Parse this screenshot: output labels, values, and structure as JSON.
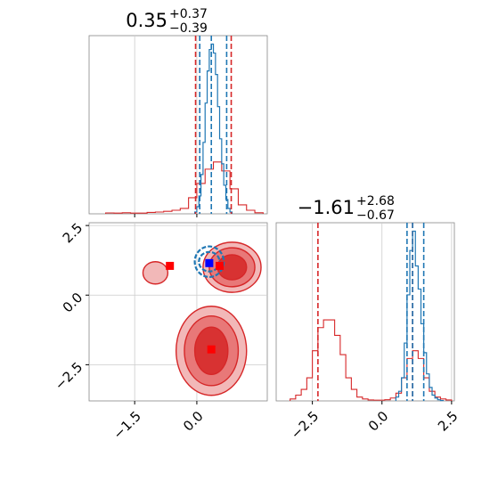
{
  "chart_data": {
    "type": "corner",
    "parameters": 2,
    "colors": {
      "reference": "#d62728",
      "posterior": "#1f77b4"
    },
    "grid": true,
    "panels": [
      {
        "kind": "histogram",
        "position": "top-left",
        "title": {
          "median": "0.35",
          "plus": "+0.37",
          "minus": "−0.39"
        },
        "xlim": [
          -2.6,
          1.7
        ],
        "x_ticks": [
          -1.5,
          0.0
        ],
        "reference_lines": [
          -0.03,
          0.83
        ],
        "posterior_lines": [
          0.07,
          0.35,
          0.72
        ],
        "reference_hist": {
          "bin_edges": [
            -2.2,
            -2.0,
            -1.8,
            -1.6,
            -1.4,
            -1.2,
            -1.0,
            -0.8,
            -0.6,
            -0.4,
            -0.2,
            0.0,
            0.2,
            0.4,
            0.6,
            0.8,
            1.0,
            1.2,
            1.4,
            1.6
          ],
          "counts": [
            0.005,
            0.004,
            0.006,
            0.004,
            0.004,
            0.008,
            0.01,
            0.014,
            0.02,
            0.03,
            0.09,
            0.17,
            0.25,
            0.29,
            0.24,
            0.14,
            0.05,
            0.02,
            0.006
          ]
        },
        "posterior_hist": {
          "bin_edges": [
            -0.05,
            0.0,
            0.05,
            0.1,
            0.15,
            0.2,
            0.25,
            0.3,
            0.35,
            0.4,
            0.45,
            0.5,
            0.55,
            0.6,
            0.65,
            0.7,
            0.75,
            0.8,
            0.85
          ],
          "counts": [
            0.01,
            0.04,
            0.1,
            0.22,
            0.4,
            0.62,
            0.8,
            0.92,
            0.95,
            0.9,
            0.78,
            0.6,
            0.42,
            0.28,
            0.16,
            0.08,
            0.03,
            0.01
          ]
        }
      },
      {
        "kind": "contour",
        "position": "bottom-left",
        "xlim": [
          -2.6,
          1.7
        ],
        "ylim": [
          -3.8,
          2.6
        ],
        "x_ticks": [
          -1.5,
          0.0
        ],
        "y_ticks": [
          2.5,
          0.0,
          -2.5
        ],
        "x_tick_labels": [
          "−1.5",
          "0.0"
        ],
        "y_tick_labels": [
          "2.5",
          "0.0",
          "−2.5"
        ],
        "reference_modes": [
          {
            "x": 0.35,
            "y": -2.0,
            "rx": [
              0.85,
              0.65,
              0.4
            ],
            "ry": [
              1.6,
              1.25,
              0.85
            ]
          },
          {
            "x": 0.85,
            "y": 1.0,
            "rx": [
              0.7,
              0.55,
              0.35
            ],
            "ry": [
              0.9,
              0.7,
              0.45
            ]
          },
          {
            "x": -1.0,
            "y": 0.8,
            "rx": [
              0.3
            ],
            "ry": [
              0.4
            ]
          }
        ],
        "reference_points": [
          {
            "x": -0.65,
            "y": 1.05
          },
          {
            "x": 0.55,
            "y": 1.05
          },
          {
            "x": 0.35,
            "y": -1.95
          }
        ],
        "posterior_point": {
          "x": 0.3,
          "y": 1.15
        },
        "posterior_contours": [
          {
            "x": 0.3,
            "y": 1.2,
            "rx": 0.35,
            "ry": 0.55
          },
          {
            "x": 0.3,
            "y": 1.2,
            "rx": 0.25,
            "ry": 0.35
          }
        ]
      },
      {
        "kind": "histogram",
        "position": "bottom-right",
        "title": {
          "median": "−1.61",
          "plus": "+2.68",
          "minus": "−0.67"
        },
        "xlim": [
          -3.8,
          2.6
        ],
        "x_ticks": [
          -2.5,
          0.0,
          2.5
        ],
        "x_tick_labels": [
          "−2.5",
          "0.0",
          "2.5"
        ],
        "reference_lines": [
          -2.3,
          1.1
        ],
        "posterior_lines": [
          0.9,
          1.1,
          1.5
        ],
        "reference_hist": {
          "bin_edges": [
            -3.3,
            -3.1,
            -2.9,
            -2.7,
            -2.5,
            -2.3,
            -2.1,
            -1.9,
            -1.7,
            -1.5,
            -1.3,
            -1.1,
            -0.9,
            -0.7,
            -0.5,
            -0.3,
            -0.1,
            0.1,
            0.3,
            0.5,
            0.7,
            0.9,
            1.1,
            1.3,
            1.5,
            1.7,
            1.9,
            2.1,
            2.3,
            2.5
          ],
          "counts": [
            0.01,
            0.03,
            0.06,
            0.12,
            0.26,
            0.38,
            0.42,
            0.42,
            0.34,
            0.24,
            0.12,
            0.06,
            0.02,
            0.01,
            0.005,
            0.004,
            0.004,
            0.006,
            0.015,
            0.04,
            0.12,
            0.22,
            0.26,
            0.22,
            0.12,
            0.05,
            0.02,
            0.01,
            0.005
          ]
        },
        "posterior_hist": {
          "bin_edges": [
            0.5,
            0.6,
            0.7,
            0.8,
            0.9,
            1.0,
            1.1,
            1.2,
            1.3,
            1.4,
            1.5,
            1.6,
            1.7,
            1.8,
            1.9,
            2.0,
            2.1,
            2.2
          ],
          "counts": [
            0.02,
            0.05,
            0.12,
            0.3,
            0.55,
            0.78,
            0.88,
            0.7,
            0.58,
            0.4,
            0.25,
            0.14,
            0.07,
            0.03,
            0.015,
            0.006,
            0.002
          ]
        }
      }
    ]
  }
}
